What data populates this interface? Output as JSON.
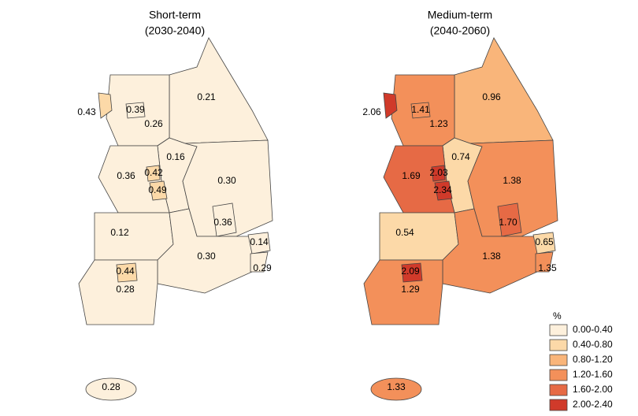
{
  "maps": [
    {
      "title": "Short-term",
      "subtitle": "(2030-2040)",
      "regions": [
        {
          "label": "0.21",
          "color": "#fdf0dc"
        },
        {
          "label": "0.26",
          "color": "#fdf0dc"
        },
        {
          "label": "0.39",
          "color": "#fdf0dc"
        },
        {
          "label": "0.43",
          "color": "#fcd9a8"
        },
        {
          "label": "0.16",
          "color": "#fdf0dc"
        },
        {
          "label": "0.36",
          "color": "#fdf0dc"
        },
        {
          "label": "0.42",
          "color": "#fcd9a8"
        },
        {
          "label": "0.49",
          "color": "#fcd9a8"
        },
        {
          "label": "0.30",
          "color": "#fdf0dc"
        },
        {
          "label": "0.36",
          "color": "#fdf0dc"
        },
        {
          "label": "0.12",
          "color": "#fdf0dc"
        },
        {
          "label": "0.30",
          "color": "#fdf0dc"
        },
        {
          "label": "0.14",
          "color": "#fdf0dc"
        },
        {
          "label": "0.29",
          "color": "#fdf0dc"
        },
        {
          "label": "0.28",
          "color": "#fdf0dc"
        },
        {
          "label": "0.44",
          "color": "#fcd9a8"
        },
        {
          "label": "0.28",
          "color": "#fdf0dc"
        }
      ]
    },
    {
      "title": "Medium-term",
      "subtitle": "(2040-2060)",
      "regions": [
        {
          "label": "0.96",
          "color": "#f9b57a"
        },
        {
          "label": "1.23",
          "color": "#f3905a"
        },
        {
          "label": "1.41",
          "color": "#f3905a"
        },
        {
          "label": "2.06",
          "color": "#d03a2a"
        },
        {
          "label": "0.74",
          "color": "#fcd9a8"
        },
        {
          "label": "1.69",
          "color": "#e66a45"
        },
        {
          "label": "2.03",
          "color": "#d03a2a"
        },
        {
          "label": "2.34",
          "color": "#d03a2a"
        },
        {
          "label": "1.38",
          "color": "#f3905a"
        },
        {
          "label": "1.70",
          "color": "#e66a45"
        },
        {
          "label": "0.54",
          "color": "#fcd9a8"
        },
        {
          "label": "1.38",
          "color": "#f3905a"
        },
        {
          "label": "0.65",
          "color": "#fcd9a8"
        },
        {
          "label": "1.35",
          "color": "#f3905a"
        },
        {
          "label": "1.29",
          "color": "#f3905a"
        },
        {
          "label": "2.09",
          "color": "#d03a2a"
        },
        {
          "label": "1.33",
          "color": "#f3905a"
        }
      ]
    }
  ],
  "legend": {
    "title": "%",
    "items": [
      {
        "label": "0.00-0.40",
        "color": "#fdf0dc"
      },
      {
        "label": "0.40-0.80",
        "color": "#fcd9a8"
      },
      {
        "label": "0.80-1.20",
        "color": "#f9b57a"
      },
      {
        "label": "1.20-1.60",
        "color": "#f3905a"
      },
      {
        "label": "1.60-2.00",
        "color": "#e66a45"
      },
      {
        "label": "2.00-2.40",
        "color": "#d03a2a"
      }
    ]
  }
}
